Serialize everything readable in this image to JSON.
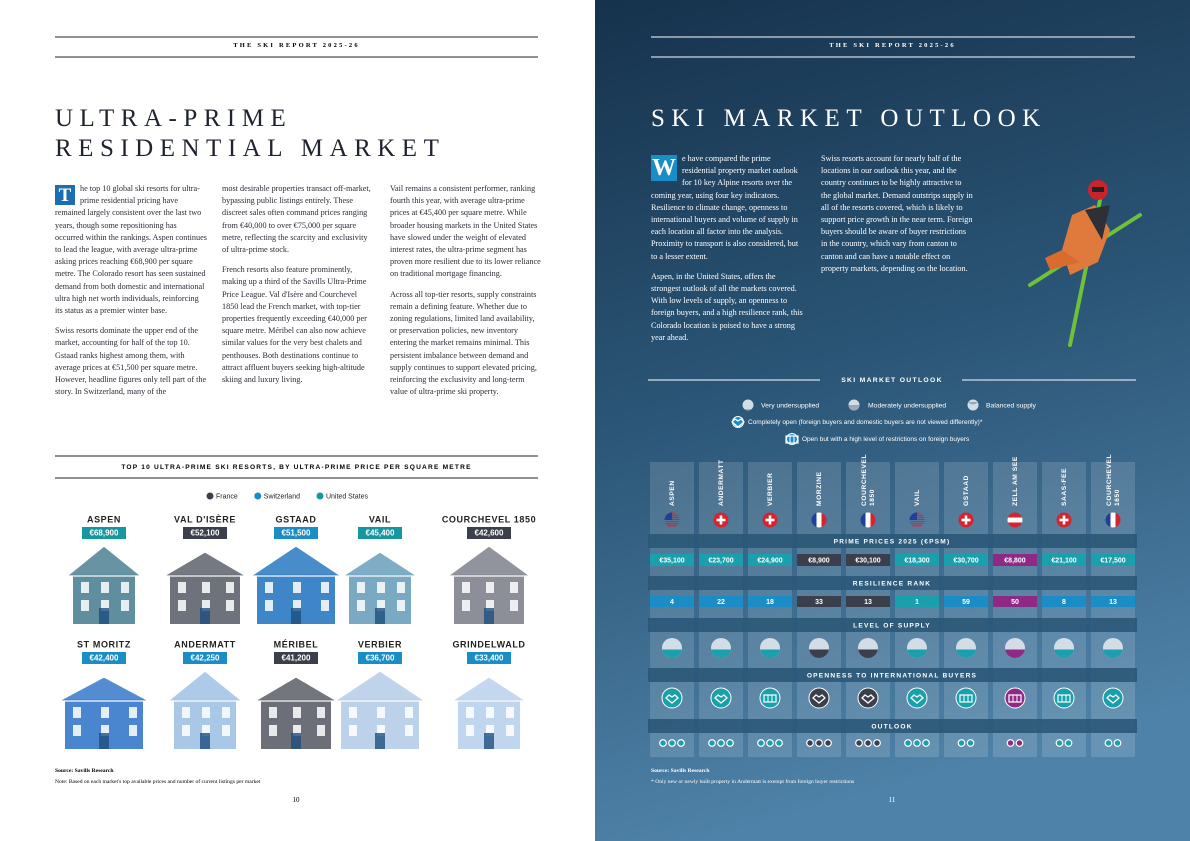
{
  "left_page": {
    "header": "THE SKI REPORT 2025-26",
    "title": [
      "ULTRA-PRIME",
      "RESIDENTIAL MARKET"
    ],
    "drop_cap": "T",
    "columns": [
      [
        "he top 10 global ski resorts for ultra-prime residential pricing have remained largely consistent over the last two years, though some repositioning has occurred within the rankings. Aspen continues to lead the league, with average ultra-prime asking prices reaching €68,900 per square metre. The Colorado resort has seen sustained demand from both domestic and international ultra high net worth individuals, reinforcing its status as a premier winter base.",
        "Swiss resorts dominate the upper end of the market, accounting for half of the top 10. Gstaad ranks highest among them, with average prices at €51,500 per square metre. However, headline figures only tell part of the story. In Switzerland, many of the"
      ],
      [
        "most desirable properties transact off-market, bypassing public listings entirely. These discreet sales often command prices ranging from €40,000 to over €75,000 per square metre, reflecting the scarcity and exclusivity of ultra-prime stock.",
        "French resorts also feature prominently, making up a third of the Savills Ultra-Prime Price League. Val d'Isère and Courchevel 1850 lead the French market, with top-tier properties frequently exceeding €40,000 per square metre. Méribel can also now achieve similar values for the very best chalets and penthouses. Both destinations continue to attract affluent buyers seeking high-altitude skiing and luxury living."
      ],
      [
        "Vail remains a consistent performer, ranking fourth this year, with average ultra-prime prices at €45,400 per square metre. While broader housing markets in the United States have slowed under the weight of elevated interest rates, the ultra-prime segment has proven more resilient due to its lower reliance on traditional mortgage financing.",
        "Across all top-tier resorts, supply constraints remain a defining feature. Whether due to zoning regulations, limited land availability, or preservation policies, new inventory entering the market remains minimal. This persistent imbalance between demand and supply continues to support elevated pricing, reinforcing the exclusivity and long-term value of ultra-prime ski property."
      ]
    ],
    "chart_title": "TOP 10 ULTRA-PRIME SKI RESORTS, BY ULTRA-PRIME PRICE PER SQUARE METRE",
    "legend": [
      {
        "name": "France",
        "color": "#3b3f4c"
      },
      {
        "name": "Switzerland",
        "color": "#1b8dc6"
      },
      {
        "name": "United States",
        "color": "#1497a3"
      }
    ],
    "resorts": [
      {
        "name": "ASPEN",
        "price": "€68,900",
        "country": "United States"
      },
      {
        "name": "VAL D'ISÈRE",
        "price": "€52,100",
        "country": "France"
      },
      {
        "name": "GSTAAD",
        "price": "€51,500",
        "country": "Switzerland"
      },
      {
        "name": "VAIL",
        "price": "€45,400",
        "country": "United States"
      },
      {
        "name": "COURCHEVEL 1850",
        "price": "€42,600",
        "country": "France"
      },
      {
        "name": "ST MORITZ",
        "price": "€42,400",
        "country": "Switzerland"
      },
      {
        "name": "ANDERMATT",
        "price": "€42,250",
        "country": "Switzerland"
      },
      {
        "name": "MÉRIBEL",
        "price": "€41,200",
        "country": "France"
      },
      {
        "name": "VERBIER",
        "price": "€36,700",
        "country": "Switzerland"
      },
      {
        "name": "GRINDELWALD",
        "price": "€33,400",
        "country": "Switzerland"
      }
    ],
    "source": "Source: Savills Research",
    "note": "Note: Based on each market's top available prices and number of current listings per market",
    "page_number": "10"
  },
  "right_page": {
    "header": "THE SKI REPORT 2025-26",
    "title": "SKI MARKET OUTLOOK",
    "drop_cap": "W",
    "columns": [
      [
        "e have compared the prime residential property market outlook for 10 key Alpine resorts over the coming year, using four key indicators. Resilience to climate change, openness to international buyers and volume of supply in each location all factor into the analysis. Proximity to transport is also considered, but to a lesser extent.",
        "Aspen, in the United States, offers the strongest outlook of all the markets covered. With low levels of supply, an openness to foreign buyers, and a high resilience rank, this Colorado location is poised to have a strong year ahead."
      ],
      [
        "Swiss resorts account for nearly half of the locations in our outlook this year, and the country continues to be highly attractive to the global market. Demand outstrips supply in all of the resorts covered, which is likely to support price growth in the near term. Foreign buyers should be aware of buyer restrictions in the country, which vary from canton to canton and can have a notable effect on property markets, depending on the location."
      ]
    ],
    "outlook_title": "SKI MARKET OUTLOOK",
    "supply_legend": [
      "Very undersupplied",
      "Moderately undersupplied",
      "Balanced supply"
    ],
    "openness_legend": [
      "Completely open (foreign buyers and domestic buyers are not viewed differently)*",
      "Open but with a high level of restrictions on foreign buyers"
    ],
    "row_labels": {
      "prices": "PRIME PRICES 2025 (€PSM)",
      "resilience": "RESILIENCE RANK",
      "supply": "LEVEL OF SUPPLY",
      "openness": "OPENNESS TO INTERNATIONAL BUYERS",
      "outlook": "OUTLOOK"
    },
    "resorts": [
      {
        "name": [
          "ASPEN"
        ],
        "price": "€35,100",
        "resilience_rank": 4
      },
      {
        "name": [
          "ANDERMATT"
        ],
        "price": "€23,700",
        "resilience_rank": 22
      },
      {
        "name": [
          "VERBIER"
        ],
        "price": "€24,900",
        "resilience_rank": 18
      },
      {
        "name": [
          "MORZINE"
        ],
        "price": "€8,900",
        "resilience_rank": 33
      },
      {
        "name": [
          "COURCHEVEL",
          "1850"
        ],
        "price": "€30,100",
        "resilience_rank": 13
      },
      {
        "name": [
          "VAIL"
        ],
        "price": "€18,300",
        "resilience_rank": 1
      },
      {
        "name": [
          "GSTAAD"
        ],
        "price": "€30,700",
        "resilience_rank": 59
      },
      {
        "name": [
          "ZELL AM SEE"
        ],
        "price": "€8,800",
        "resilience_rank": 50
      },
      {
        "name": [
          "SAAS-FEE"
        ],
        "price": "€21,100",
        "resilience_rank": 8
      },
      {
        "name": [
          "COURCHEVEL",
          "1650"
        ],
        "price": "€17,500",
        "resilience_rank": 13
      }
    ],
    "source": "Source: Savills Research",
    "note": "* Only new or newly built property in Andermatt is exempt from foreign buyer restrictions",
    "page_number": "11"
  }
}
